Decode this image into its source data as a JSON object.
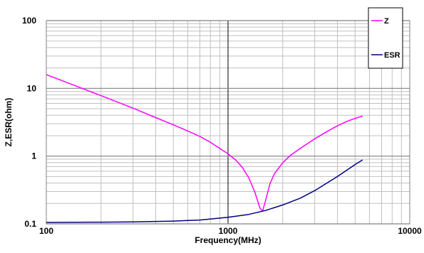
{
  "chart_data": {
    "type": "line",
    "xlabel": "Frequency(MHz)",
    "ylabel": "Z,ESR(ohm)",
    "x_scale": "log",
    "y_scale": "log",
    "xlim": [
      100,
      10000
    ],
    "ylim": [
      0.1,
      100
    ],
    "grid": true,
    "legend_position": "top-right",
    "x_ticks": [
      {
        "value": 100,
        "label": "100"
      },
      {
        "value": 1000,
        "label": "1000"
      },
      {
        "value": 10000,
        "label": "10000"
      }
    ],
    "y_ticks": [
      {
        "value": 0.1,
        "label": "0.1"
      },
      {
        "value": 1,
        "label": "1"
      },
      {
        "value": 10,
        "label": "10"
      },
      {
        "value": 100,
        "label": "100"
      }
    ],
    "series": [
      {
        "name": "Z",
        "color": "#ff00ff",
        "points": [
          [
            100,
            16
          ],
          [
            150,
            10.5
          ],
          [
            200,
            7.8
          ],
          [
            300,
            5.1
          ],
          [
            400,
            3.7
          ],
          [
            500,
            2.9
          ],
          [
            600,
            2.35
          ],
          [
            700,
            1.95
          ],
          [
            800,
            1.6
          ],
          [
            900,
            1.3
          ],
          [
            1000,
            1.08
          ],
          [
            1100,
            0.88
          ],
          [
            1200,
            0.68
          ],
          [
            1300,
            0.48
          ],
          [
            1400,
            0.3
          ],
          [
            1500,
            0.17
          ],
          [
            1550,
            0.155
          ],
          [
            1600,
            0.21
          ],
          [
            1700,
            0.39
          ],
          [
            1800,
            0.55
          ],
          [
            2000,
            0.8
          ],
          [
            2200,
            1.02
          ],
          [
            2500,
            1.3
          ],
          [
            3000,
            1.8
          ],
          [
            3500,
            2.3
          ],
          [
            4000,
            2.8
          ],
          [
            4500,
            3.25
          ],
          [
            5000,
            3.6
          ],
          [
            5500,
            3.9
          ]
        ]
      },
      {
        "name": "ESR",
        "color": "#000080",
        "points": [
          [
            100,
            0.105
          ],
          [
            200,
            0.106
          ],
          [
            300,
            0.107
          ],
          [
            500,
            0.11
          ],
          [
            700,
            0.114
          ],
          [
            1000,
            0.125
          ],
          [
            1300,
            0.138
          ],
          [
            1600,
            0.157
          ],
          [
            2000,
            0.19
          ],
          [
            2500,
            0.24
          ],
          [
            3000,
            0.31
          ],
          [
            3500,
            0.4
          ],
          [
            4000,
            0.5
          ],
          [
            4500,
            0.62
          ],
          [
            5000,
            0.75
          ],
          [
            5500,
            0.88
          ]
        ]
      }
    ]
  }
}
